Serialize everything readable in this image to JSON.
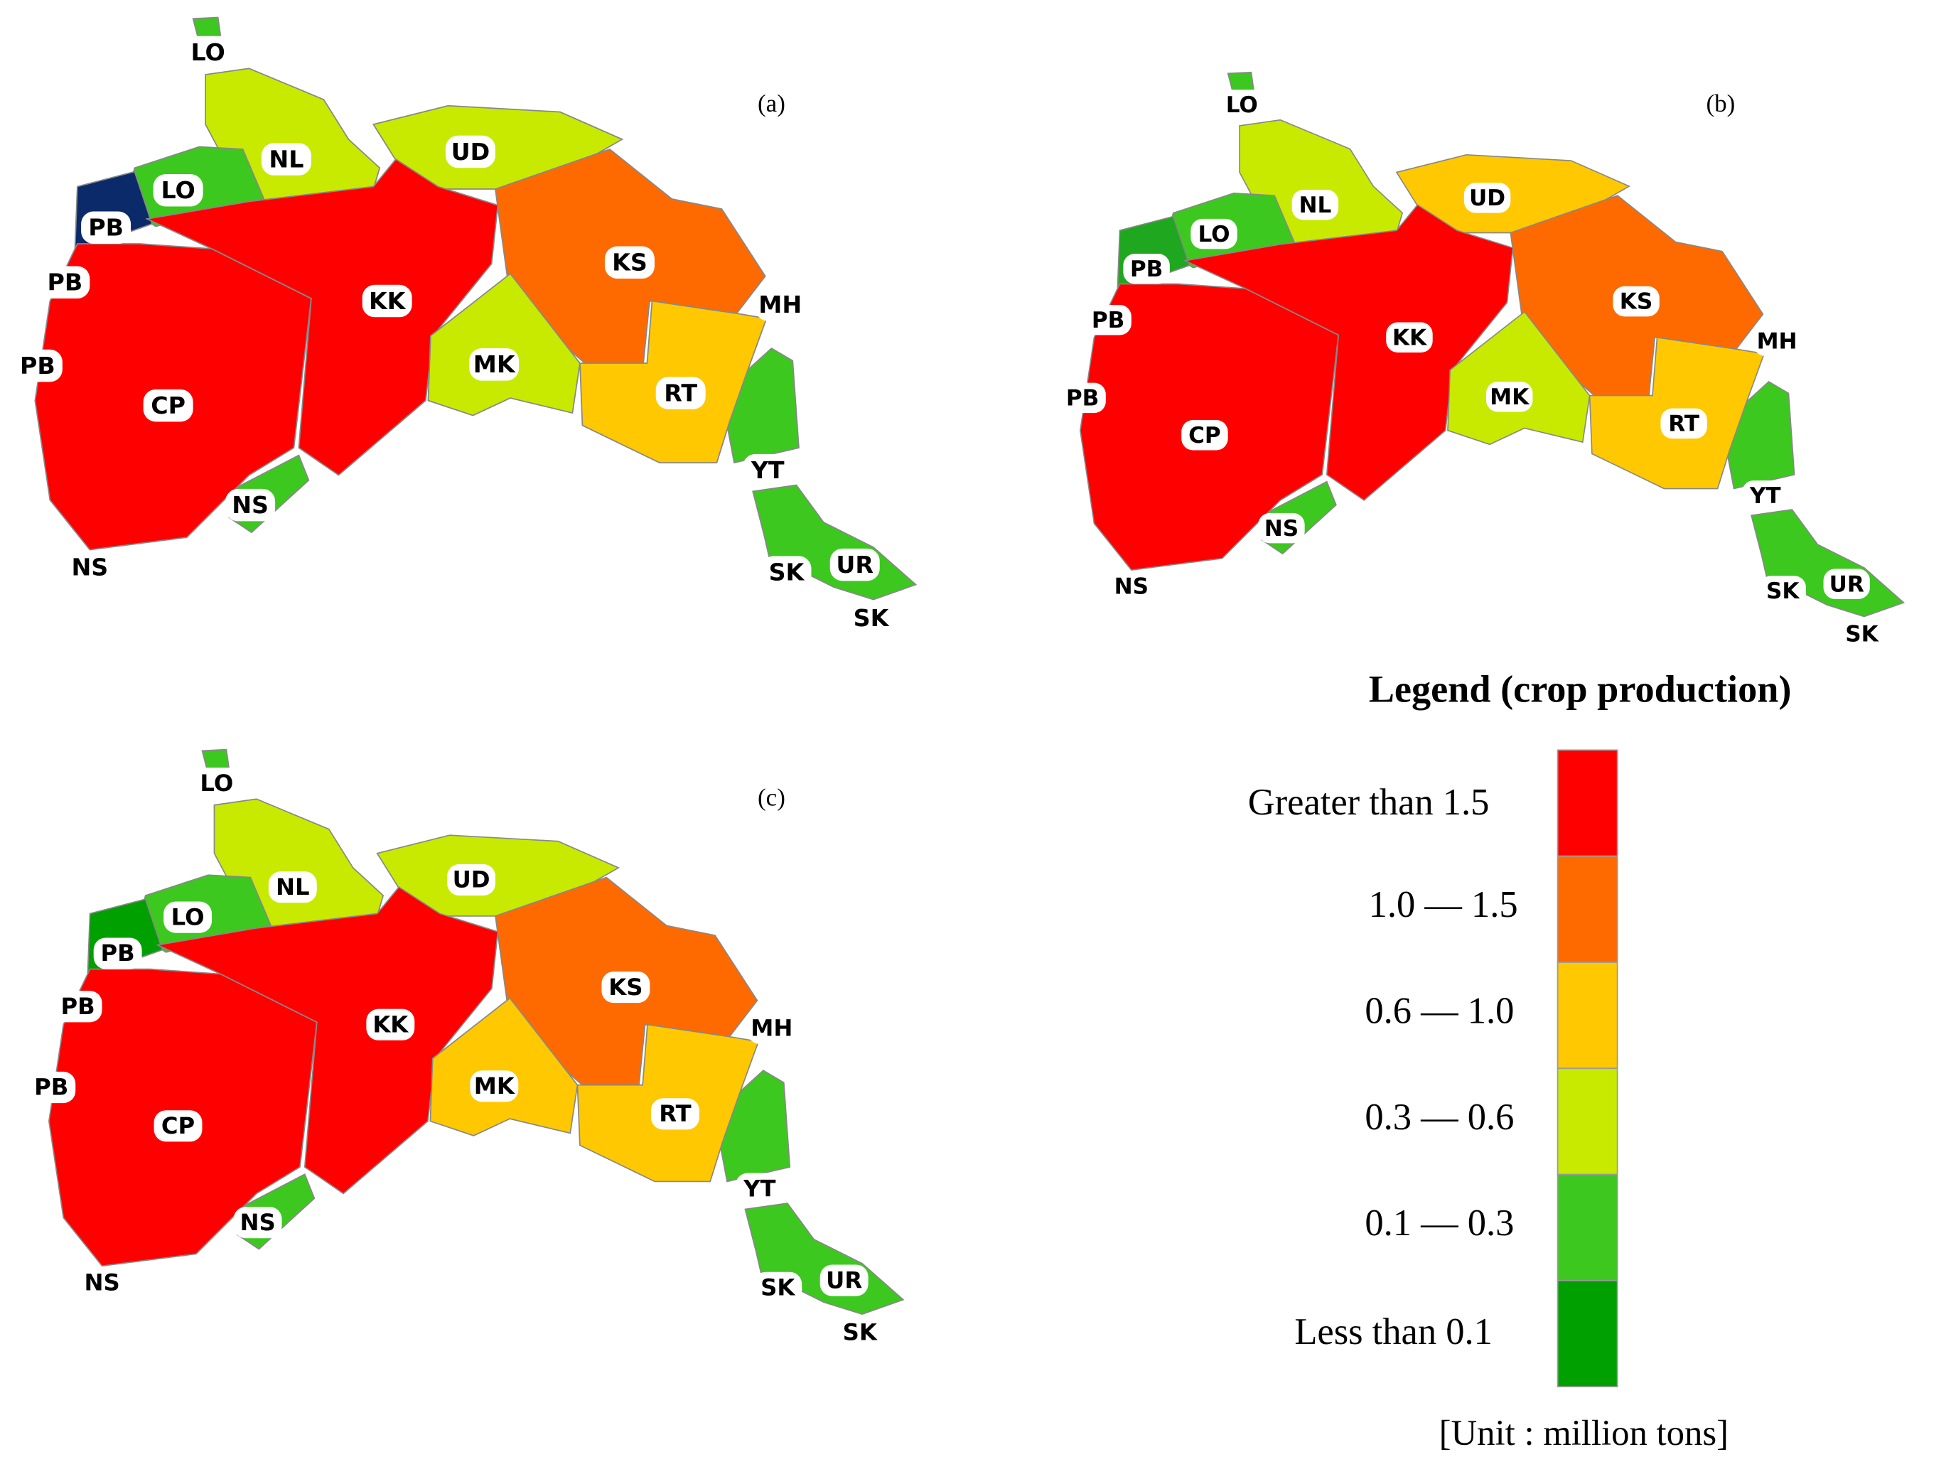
{
  "panels": [
    {
      "tag": "(a)",
      "labels": [
        {
          "text": "LO",
          "color": "#3cc81e"
        },
        {
          "text": "NL",
          "color": "#c8ea00"
        },
        {
          "text": "UD",
          "color": "#c8ea00"
        },
        {
          "text": "LO",
          "color": "#3cc81e"
        },
        {
          "text": "PB",
          "color": "#0a2a6a"
        },
        {
          "text": "PB"
        },
        {
          "text": "KS",
          "color": "#ff6a00"
        },
        {
          "text": "KK",
          "color": "#ff0000"
        },
        {
          "text": "MH",
          "color": "#3cc81e"
        },
        {
          "text": "PB"
        },
        {
          "text": "MK",
          "color": "#c8ea00"
        },
        {
          "text": "RT",
          "color": "#ffc800"
        },
        {
          "text": "CP",
          "color": "#ff0000"
        },
        {
          "text": "YT"
        },
        {
          "text": "NS",
          "color": "#3cc81e"
        },
        {
          "text": "NS"
        },
        {
          "text": "SK",
          "color": "#3cc81e"
        },
        {
          "text": "UR"
        },
        {
          "text": "SK"
        }
      ]
    },
    {
      "tag": "(b)",
      "labels": [
        {
          "text": "LO",
          "color": "#3cc81e"
        },
        {
          "text": "NL",
          "color": "#c8ea00"
        },
        {
          "text": "UD",
          "color": "#ffc800"
        },
        {
          "text": "LO",
          "color": "#3cc81e"
        },
        {
          "text": "PB",
          "color": "#1fa81f"
        },
        {
          "text": "PB"
        },
        {
          "text": "KS",
          "color": "#ff6a00"
        },
        {
          "text": "KK",
          "color": "#ff0000"
        },
        {
          "text": "MH",
          "color": "#3cc81e"
        },
        {
          "text": "PB"
        },
        {
          "text": "MK",
          "color": "#c8ea00"
        },
        {
          "text": "RT",
          "color": "#ffc800"
        },
        {
          "text": "CP",
          "color": "#ff0000"
        },
        {
          "text": "YT"
        },
        {
          "text": "NS",
          "color": "#3cc81e"
        },
        {
          "text": "NS"
        },
        {
          "text": "SK",
          "color": "#3cc81e"
        },
        {
          "text": "UR"
        },
        {
          "text": "SK"
        }
      ]
    },
    {
      "tag": "(c)",
      "labels": [
        {
          "text": "LO",
          "color": "#3cc81e"
        },
        {
          "text": "NL",
          "color": "#c8ea00"
        },
        {
          "text": "UD",
          "color": "#c8ea00"
        },
        {
          "text": "LO",
          "color": "#3cc81e"
        },
        {
          "text": "PB",
          "color": "#00a000"
        },
        {
          "text": "PB"
        },
        {
          "text": "KS",
          "color": "#ff6a00"
        },
        {
          "text": "KK",
          "color": "#ff0000"
        },
        {
          "text": "MH",
          "color": "#3cc81e"
        },
        {
          "text": "PB"
        },
        {
          "text": "MK",
          "color": "#ffc800"
        },
        {
          "text": "RT",
          "color": "#ffc800"
        },
        {
          "text": "CP",
          "color": "#ff0000"
        },
        {
          "text": "YT"
        },
        {
          "text": "NS",
          "color": "#3cc81e"
        },
        {
          "text": "NS"
        },
        {
          "text": "SK",
          "color": "#3cc81e"
        },
        {
          "text": "UR"
        },
        {
          "text": "SK"
        }
      ]
    }
  ],
  "legend": {
    "title": "Legend (crop production)",
    "classes": [
      {
        "label": "Greater than 1.5",
        "color": "#ff0000"
      },
      {
        "label": "1.0 — 1.5",
        "color": "#ff6a00"
      },
      {
        "label": "0.6 — 1.0",
        "color": "#ffc800"
      },
      {
        "label": "0.3 — 0.6",
        "color": "#c8ea00"
      },
      {
        "label": "0.1 — 0.3",
        "color": "#3cc81e"
      },
      {
        "label": "Less than 0.1",
        "color": "#00a000"
      }
    ],
    "unit": "[Unit : million tons]"
  }
}
